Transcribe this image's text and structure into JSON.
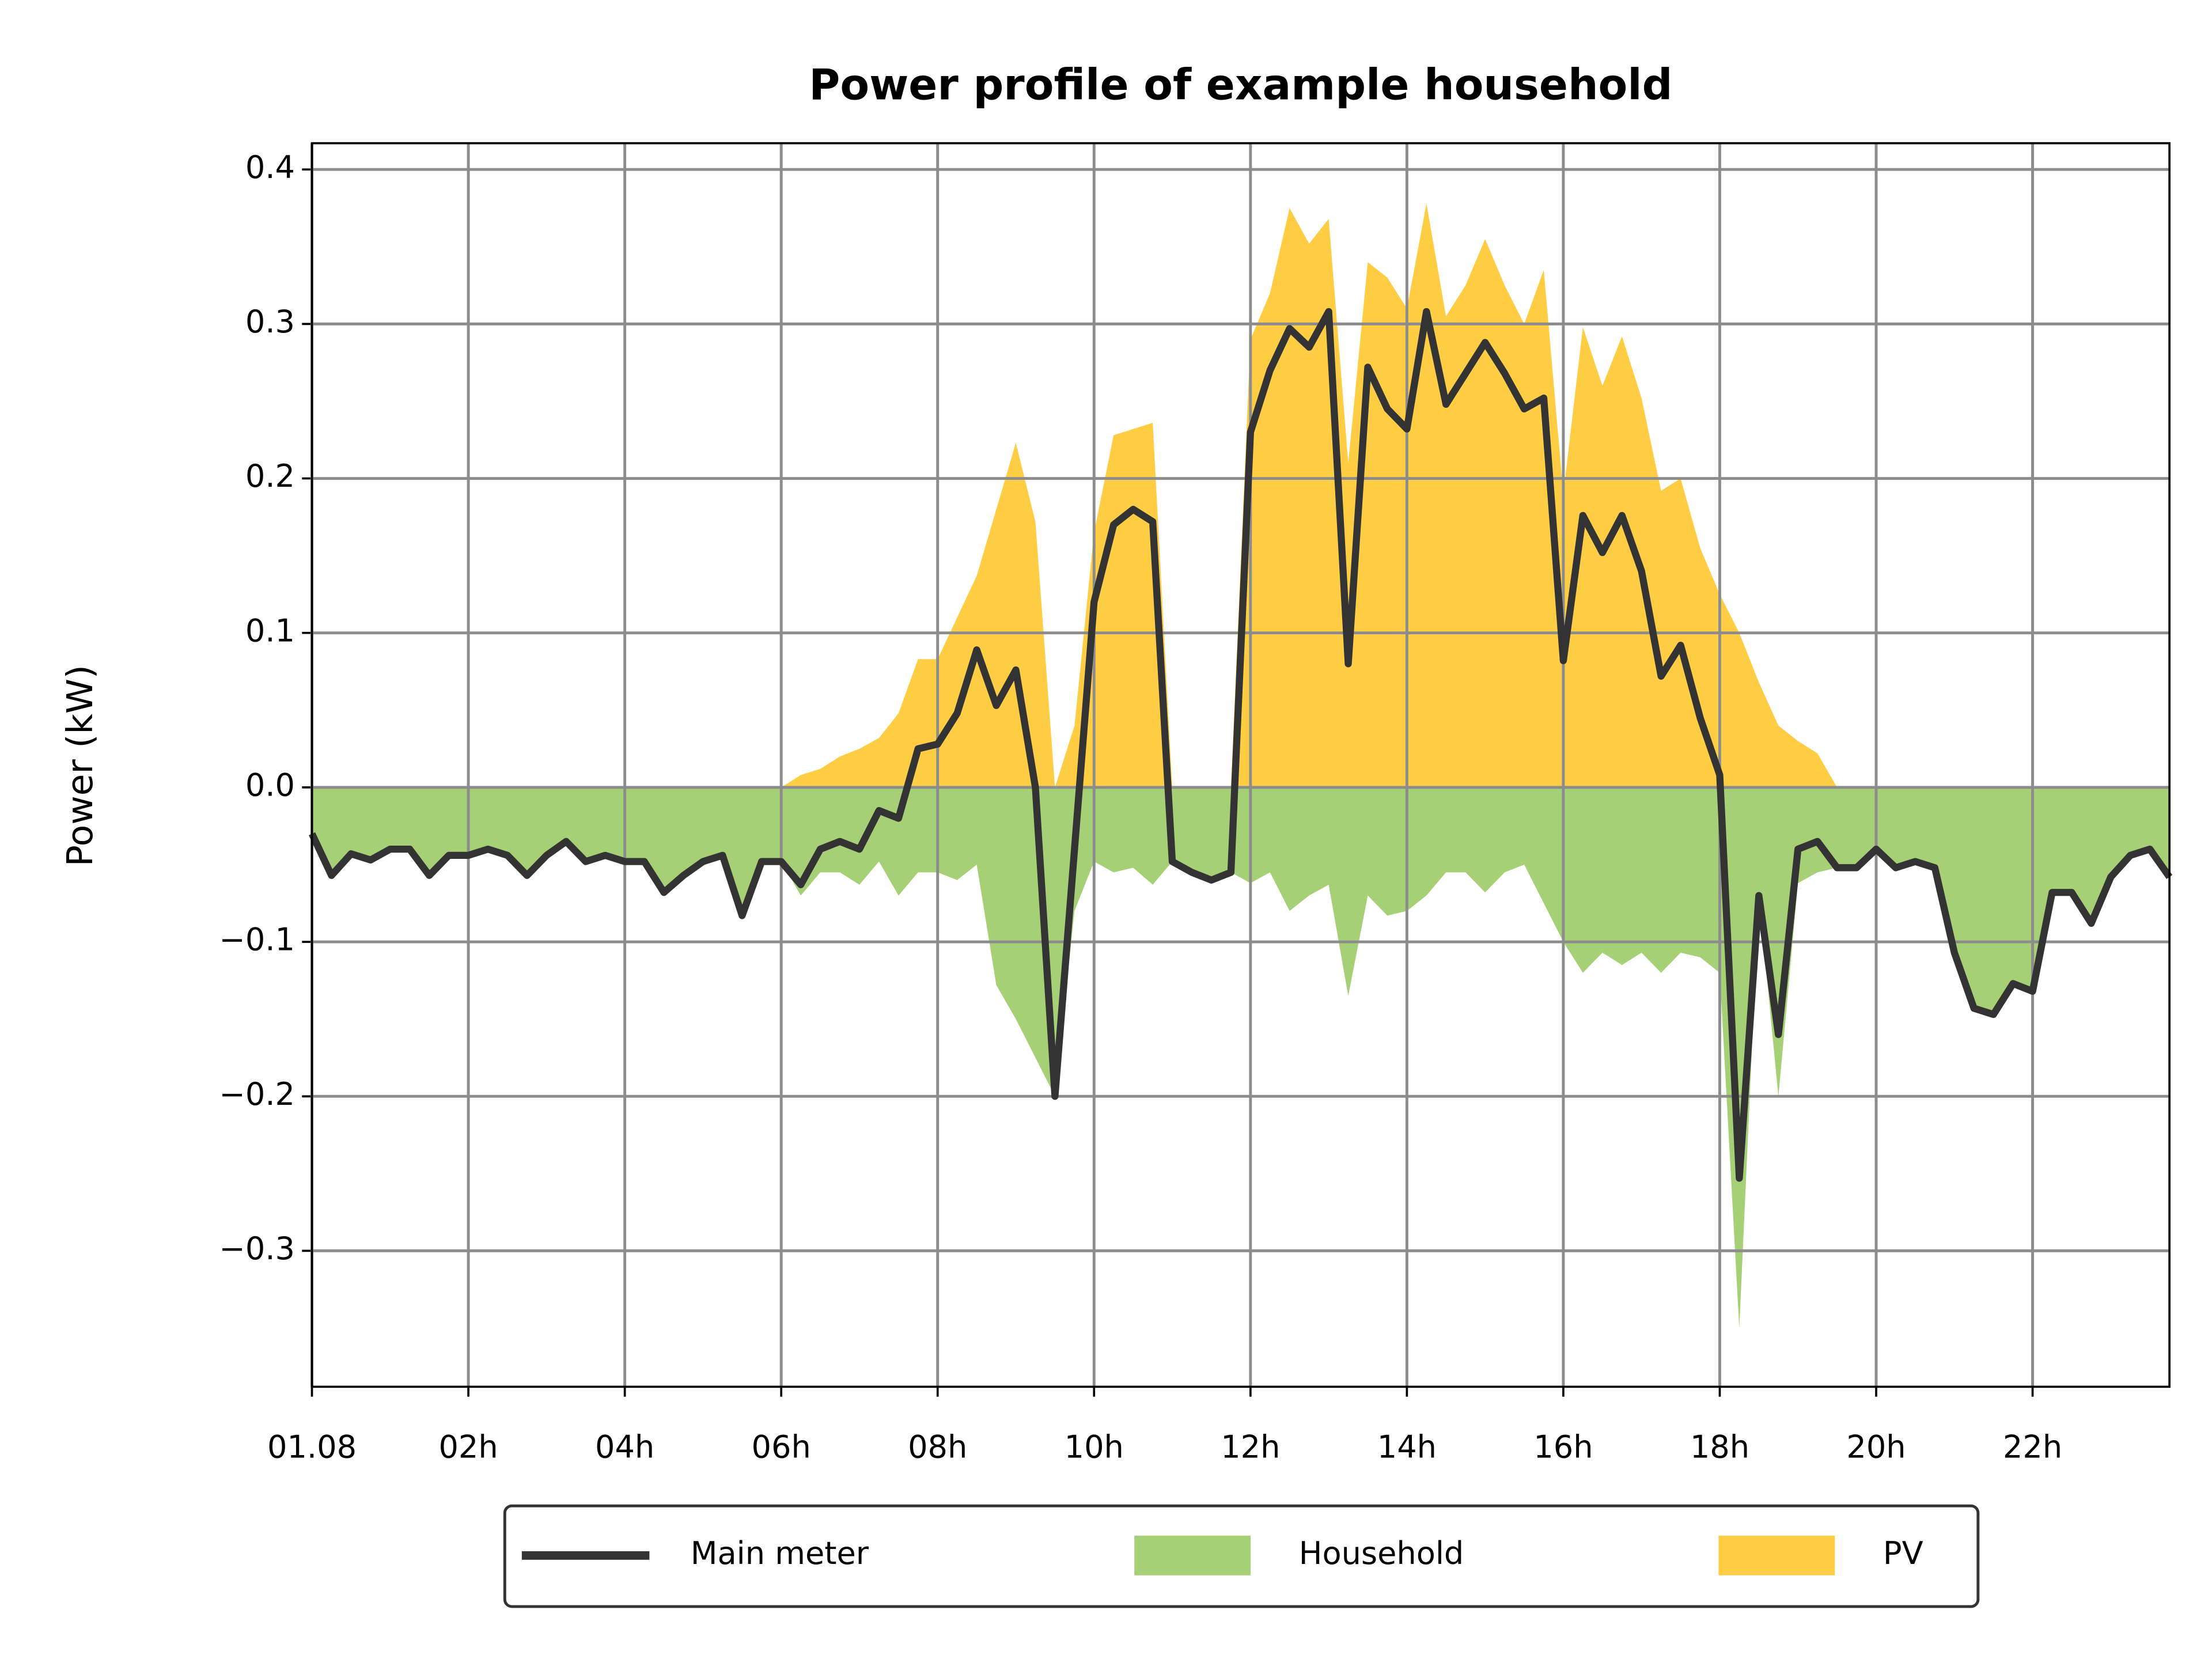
{
  "chart_data": {
    "type": "line",
    "title": "Power profile of example household",
    "ylabel": "Power (kW)",
    "x": [
      0,
      0.25,
      0.5,
      0.75,
      1,
      1.25,
      1.5,
      1.75,
      2,
      2.25,
      2.5,
      2.75,
      3,
      3.25,
      3.5,
      3.75,
      4,
      4.25,
      4.5,
      4.75,
      5,
      5.25,
      5.5,
      5.75,
      6,
      6.25,
      6.5,
      6.75,
      7,
      7.25,
      7.5,
      7.75,
      8,
      8.25,
      8.5,
      8.75,
      9,
      9.25,
      9.5,
      9.75,
      10,
      10.25,
      10.5,
      10.75,
      11,
      11.25,
      11.5,
      11.75,
      12,
      12.25,
      12.5,
      12.75,
      13,
      13.25,
      13.5,
      13.75,
      14,
      14.25,
      14.5,
      14.75,
      15,
      15.25,
      15.5,
      15.75,
      16,
      16.25,
      16.5,
      16.75,
      17,
      17.25,
      17.5,
      17.75,
      18,
      18.25,
      18.5,
      18.75,
      19,
      19.25,
      19.5,
      19.75,
      20,
      20.25,
      20.5,
      20.75,
      21,
      21.25,
      21.5,
      21.75,
      22,
      22.25,
      22.5,
      22.75,
      23,
      23.25,
      23.5,
      23.75
    ],
    "series": [
      {
        "name": "Main meter",
        "color": "#333333",
        "style": "line",
        "values": [
          -0.03,
          -0.057,
          -0.043,
          -0.047,
          -0.04,
          -0.04,
          -0.057,
          -0.044,
          -0.044,
          -0.04,
          -0.044,
          -0.057,
          -0.044,
          -0.035,
          -0.048,
          -0.044,
          -0.048,
          -0.048,
          -0.068,
          -0.057,
          -0.048,
          -0.044,
          -0.083,
          -0.048,
          -0.048,
          -0.063,
          -0.04,
          -0.035,
          -0.04,
          -0.015,
          -0.02,
          0.025,
          0.028,
          0.048,
          0.089,
          0.053,
          0.076,
          0.0,
          -0.2,
          -0.04,
          0.12,
          0.17,
          0.18,
          0.172,
          -0.048,
          -0.055,
          -0.06,
          -0.055,
          0.23,
          0.27,
          0.297,
          0.285,
          0.308,
          0.08,
          0.272,
          0.245,
          0.232,
          0.308,
          0.248,
          0.268,
          0.288,
          0.268,
          0.245,
          0.252,
          0.082,
          0.176,
          0.152,
          0.176,
          0.14,
          0.072,
          0.092,
          0.045,
          0.008,
          -0.253,
          -0.07,
          -0.16,
          -0.04,
          -0.035,
          -0.052,
          -0.052,
          -0.04,
          -0.052,
          -0.048,
          -0.052,
          -0.107,
          -0.143,
          -0.147,
          -0.127,
          -0.132,
          -0.068,
          -0.068,
          -0.088,
          -0.058,
          -0.044,
          -0.04,
          -0.058
        ]
      },
      {
        "name": "Household",
        "color": "#a6d075",
        "style": "area",
        "values": [
          -0.03,
          -0.057,
          -0.043,
          -0.047,
          -0.04,
          -0.04,
          -0.057,
          -0.044,
          -0.044,
          -0.04,
          -0.044,
          -0.057,
          -0.044,
          -0.035,
          -0.048,
          -0.044,
          -0.048,
          -0.048,
          -0.068,
          -0.057,
          -0.048,
          -0.044,
          -0.083,
          -0.048,
          -0.048,
          -0.07,
          -0.055,
          -0.055,
          -0.063,
          -0.048,
          -0.07,
          -0.055,
          -0.055,
          -0.06,
          -0.05,
          -0.128,
          -0.15,
          -0.175,
          -0.2,
          -0.08,
          -0.048,
          -0.055,
          -0.052,
          -0.063,
          -0.048,
          -0.055,
          -0.06,
          -0.055,
          -0.062,
          -0.055,
          -0.08,
          -0.07,
          -0.063,
          -0.135,
          -0.07,
          -0.083,
          -0.08,
          -0.07,
          -0.055,
          -0.055,
          -0.068,
          -0.055,
          -0.05,
          -0.075,
          -0.1,
          -0.12,
          -0.107,
          -0.115,
          -0.107,
          -0.12,
          -0.107,
          -0.11,
          -0.12,
          -0.35,
          -0.07,
          -0.2,
          -0.062,
          -0.055,
          -0.052,
          -0.052,
          -0.04,
          -0.052,
          -0.048,
          -0.052,
          -0.107,
          -0.143,
          -0.147,
          -0.127,
          -0.132,
          -0.068,
          -0.068,
          -0.088,
          -0.058,
          -0.044,
          -0.04,
          -0.058
        ]
      },
      {
        "name": "PV",
        "color": "#ffcd44",
        "style": "area",
        "values": [
          0,
          0,
          0,
          0,
          0,
          0,
          0,
          0,
          0,
          0,
          0,
          0,
          0,
          0,
          0,
          0,
          0,
          0,
          0,
          0,
          0,
          0,
          0,
          0,
          0,
          0.008,
          0.012,
          0.02,
          0.025,
          0.032,
          0.048,
          0.083,
          0.083,
          0.11,
          0.137,
          0.18,
          0.223,
          0.172,
          0,
          0.04,
          0.165,
          0.228,
          0.232,
          0.236,
          0,
          0,
          0,
          0,
          0.29,
          0.32,
          0.375,
          0.352,
          0.368,
          0.21,
          0.34,
          0.33,
          0.31,
          0.378,
          0.305,
          0.325,
          0.355,
          0.325,
          0.3,
          0.335,
          0.19,
          0.298,
          0.26,
          0.292,
          0.252,
          0.192,
          0.2,
          0.155,
          0.125,
          0.1,
          0.068,
          0.04,
          0.03,
          0.022,
          0,
          0,
          0,
          0,
          0,
          0,
          0,
          0,
          0,
          0,
          0,
          0,
          0,
          0,
          0,
          0,
          0,
          0
        ]
      }
    ],
    "xlim": [
      0,
      23.75
    ],
    "xticks": [
      {
        "value": 0,
        "label": "01.08"
      },
      {
        "value": 2,
        "label": "02h"
      },
      {
        "value": 4,
        "label": "04h"
      },
      {
        "value": 6,
        "label": "06h"
      },
      {
        "value": 8,
        "label": "08h"
      },
      {
        "value": 10,
        "label": "10h"
      },
      {
        "value": 12,
        "label": "12h"
      },
      {
        "value": 14,
        "label": "14h"
      },
      {
        "value": 16,
        "label": "16h"
      },
      {
        "value": 18,
        "label": "18h"
      },
      {
        "value": 20,
        "label": "20h"
      },
      {
        "value": 22,
        "label": "22h"
      }
    ],
    "ylim": [
      -0.388,
      0.417
    ],
    "yticks": [
      {
        "value": -0.3,
        "label": "−0.3"
      },
      {
        "value": -0.2,
        "label": "−0.2"
      },
      {
        "value": -0.1,
        "label": "−0.1"
      },
      {
        "value": 0,
        "label": "0.0"
      },
      0.1,
      0.2,
      0.3,
      0.4
    ],
    "grid": true,
    "legend": "below"
  }
}
